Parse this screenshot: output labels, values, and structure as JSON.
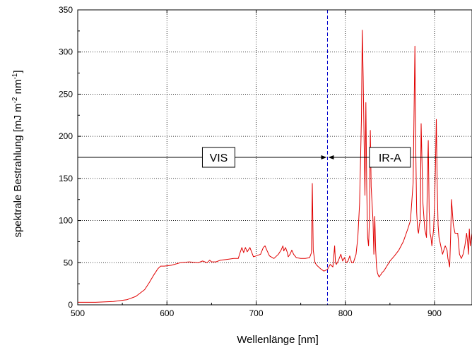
{
  "chart_data": {
    "type": "line",
    "title": "",
    "xlabel": "Wellenlänge [nm]",
    "ylabel_base": "spektrale Bestrahlung [mJ m",
    "ylabel_sup1": "-2",
    "ylabel_mid": " nm",
    "ylabel_sup2": "-1",
    "ylabel_end": "]",
    "xlim": [
      500,
      942
    ],
    "ylim": [
      0,
      350
    ],
    "xticks": [
      500,
      600,
      700,
      800,
      900
    ],
    "xtick_labels": [
      "500",
      "600",
      "700",
      "800",
      "900"
    ],
    "yticks": [
      0,
      50,
      100,
      150,
      200,
      250,
      300,
      350
    ],
    "ytick_labels": [
      "0",
      "50",
      "100",
      "150",
      "200",
      "250",
      "300",
      "350"
    ],
    "grid": true,
    "boundary_x": 780,
    "arrow_y": 175,
    "regions": [
      {
        "label": "VIS",
        "label_x": 658
      },
      {
        "label": "IR-A",
        "label_x": 850
      }
    ],
    "series": [
      {
        "color": "#e00000",
        "x": [
          500,
          520,
          540,
          555,
          565,
          575,
          580,
          585,
          590,
          593,
          597,
          605,
          615,
          625,
          635,
          640,
          645,
          648,
          650,
          655,
          660,
          668,
          675,
          680,
          682,
          684,
          686,
          688,
          690,
          693,
          697,
          700,
          705,
          708,
          710,
          712,
          715,
          720,
          725,
          728,
          730,
          731,
          733,
          735,
          736,
          738,
          740,
          742,
          745,
          750,
          755,
          760,
          762,
          763,
          764,
          766,
          768,
          772,
          776,
          780,
          783,
          786,
          788,
          789,
          790,
          792,
          795,
          797,
          799,
          801,
          803,
          805,
          807,
          809,
          812,
          814,
          816,
          818,
          819,
          820,
          821,
          822,
          823,
          824,
          825,
          826,
          827,
          828,
          829,
          831,
          832,
          833,
          834,
          835,
          836,
          837,
          838,
          839,
          840,
          841,
          843,
          846,
          850,
          855,
          860,
          865,
          870,
          873,
          876,
          878,
          879,
          880,
          881,
          882,
          883,
          884,
          885,
          887,
          889,
          891,
          892,
          893,
          894,
          895,
          896,
          897,
          899,
          900,
          901,
          902,
          903,
          904,
          905,
          907,
          909,
          912,
          914,
          915,
          916,
          917,
          918,
          919,
          921,
          923,
          926,
          928,
          930,
          932,
          934,
          936,
          937,
          938,
          939,
          940,
          942
        ],
        "y": [
          3,
          3,
          4,
          6,
          10,
          18,
          26,
          35,
          43,
          46,
          46,
          47,
          50,
          51,
          50,
          52,
          50,
          53,
          51,
          51,
          53,
          54,
          55,
          55,
          62,
          68,
          62,
          68,
          63,
          68,
          57,
          58,
          60,
          68,
          70,
          65,
          58,
          55,
          60,
          65,
          70,
          64,
          68,
          62,
          57,
          60,
          65,
          60,
          56,
          55,
          55,
          56,
          62,
          144,
          65,
          50,
          47,
          43,
          40,
          42,
          48,
          45,
          70,
          50,
          48,
          52,
          60,
          52,
          56,
          50,
          52,
          58,
          50,
          50,
          60,
          80,
          120,
          220,
          326,
          270,
          200,
          130,
          240,
          140,
          80,
          70,
          100,
          207,
          140,
          100,
          60,
          105,
          65,
          45,
          38,
          35,
          33,
          35,
          36,
          38,
          40,
          45,
          52,
          58,
          65,
          75,
          90,
          100,
          145,
          307,
          180,
          110,
          90,
          85,
          95,
          100,
          215,
          120,
          90,
          80,
          150,
          195,
          110,
          85,
          80,
          70,
          90,
          120,
          160,
          220,
          140,
          95,
          80,
          70,
          60,
          70,
          65,
          55,
          50,
          45,
          80,
          125,
          95,
          85,
          85,
          60,
          55,
          60,
          70,
          85,
          75,
          60,
          90,
          70,
          85
        ]
      }
    ]
  }
}
